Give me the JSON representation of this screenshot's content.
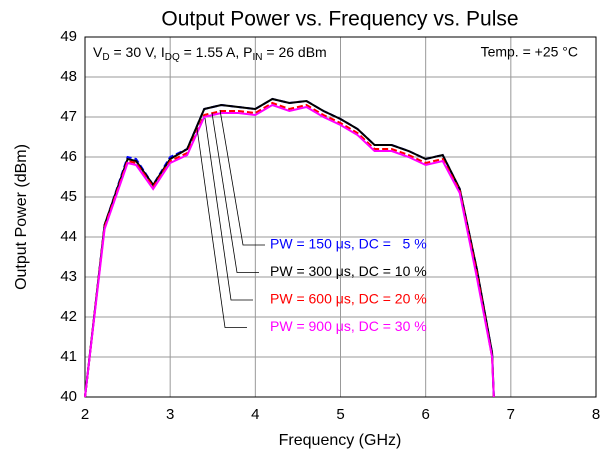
{
  "chart_data": {
    "type": "line",
    "title": "Output Power vs. Frequency vs. Pulse",
    "xlabel": "Frequency (GHz)",
    "ylabel": "Output Power (dBm)",
    "conditions": [
      "V",
      "D",
      " = 30 V, I",
      "DQ",
      " = 1.55 A, P",
      "IN",
      " = 26 dBm"
    ],
    "temperature": "Temp. = +25 °C",
    "x": [
      2,
      2.23,
      2.5,
      2.6,
      2.8,
      3,
      3.2,
      3.4,
      3.6,
      3.8,
      4,
      4.2,
      4.4,
      4.6,
      4.8,
      5,
      5.2,
      5.4,
      5.6,
      5.8,
      6,
      6.2,
      6.4,
      6.6,
      6.78,
      6.8
    ],
    "series": [
      {
        "name": "PW = 150 μs, DC =   5 %",
        "color": "#0000ff",
        "line_style": "dashed",
        "values": [
          40,
          44.3,
          46.0,
          45.95,
          45.3,
          46.0,
          46.2,
          47.2,
          47.3,
          47.25,
          47.2,
          47.45,
          47.35,
          47.4,
          47.15,
          46.95,
          46.7,
          46.3,
          46.3,
          46.15,
          45.95,
          46.05,
          45.2,
          43.2,
          41.1,
          40
        ]
      },
      {
        "name": "PW = 300 μs, DC = 10 %",
        "color": "#000000",
        "line_style": "solid",
        "values": [
          40,
          44.3,
          45.95,
          45.9,
          45.3,
          45.95,
          46.2,
          47.2,
          47.3,
          47.25,
          47.2,
          47.45,
          47.35,
          47.4,
          47.15,
          46.95,
          46.7,
          46.3,
          46.3,
          46.15,
          45.95,
          46.05,
          45.2,
          43.2,
          41.1,
          40
        ]
      },
      {
        "name": "PW = 600 μs, DC = 20 %",
        "color": "#ff0000",
        "line_style": "dashed",
        "values": [
          40,
          44.25,
          45.9,
          45.85,
          45.25,
          45.9,
          46.1,
          47.05,
          47.15,
          47.15,
          47.1,
          47.35,
          47.2,
          47.3,
          47.05,
          46.85,
          46.6,
          46.2,
          46.2,
          46.05,
          45.85,
          45.95,
          45.15,
          43.1,
          41.0,
          40
        ]
      },
      {
        "name": "PW = 900 μs, DC = 30 %",
        "color": "#ff00ff",
        "line_style": "solid",
        "values": [
          40,
          44.2,
          45.85,
          45.8,
          45.2,
          45.85,
          46.05,
          47.0,
          47.1,
          47.1,
          47.05,
          47.3,
          47.15,
          47.25,
          47.0,
          46.8,
          46.55,
          46.15,
          46.15,
          46.0,
          45.8,
          45.9,
          45.1,
          43.0,
          41.0,
          40
        ]
      }
    ],
    "xlim": [
      2,
      8
    ],
    "xticks": [
      2,
      3,
      4,
      5,
      6,
      7,
      8
    ],
    "ylim": [
      40,
      49
    ],
    "yticks": [
      40,
      41,
      42,
      43,
      44,
      45,
      46,
      47,
      48,
      49
    ],
    "grid": true
  }
}
